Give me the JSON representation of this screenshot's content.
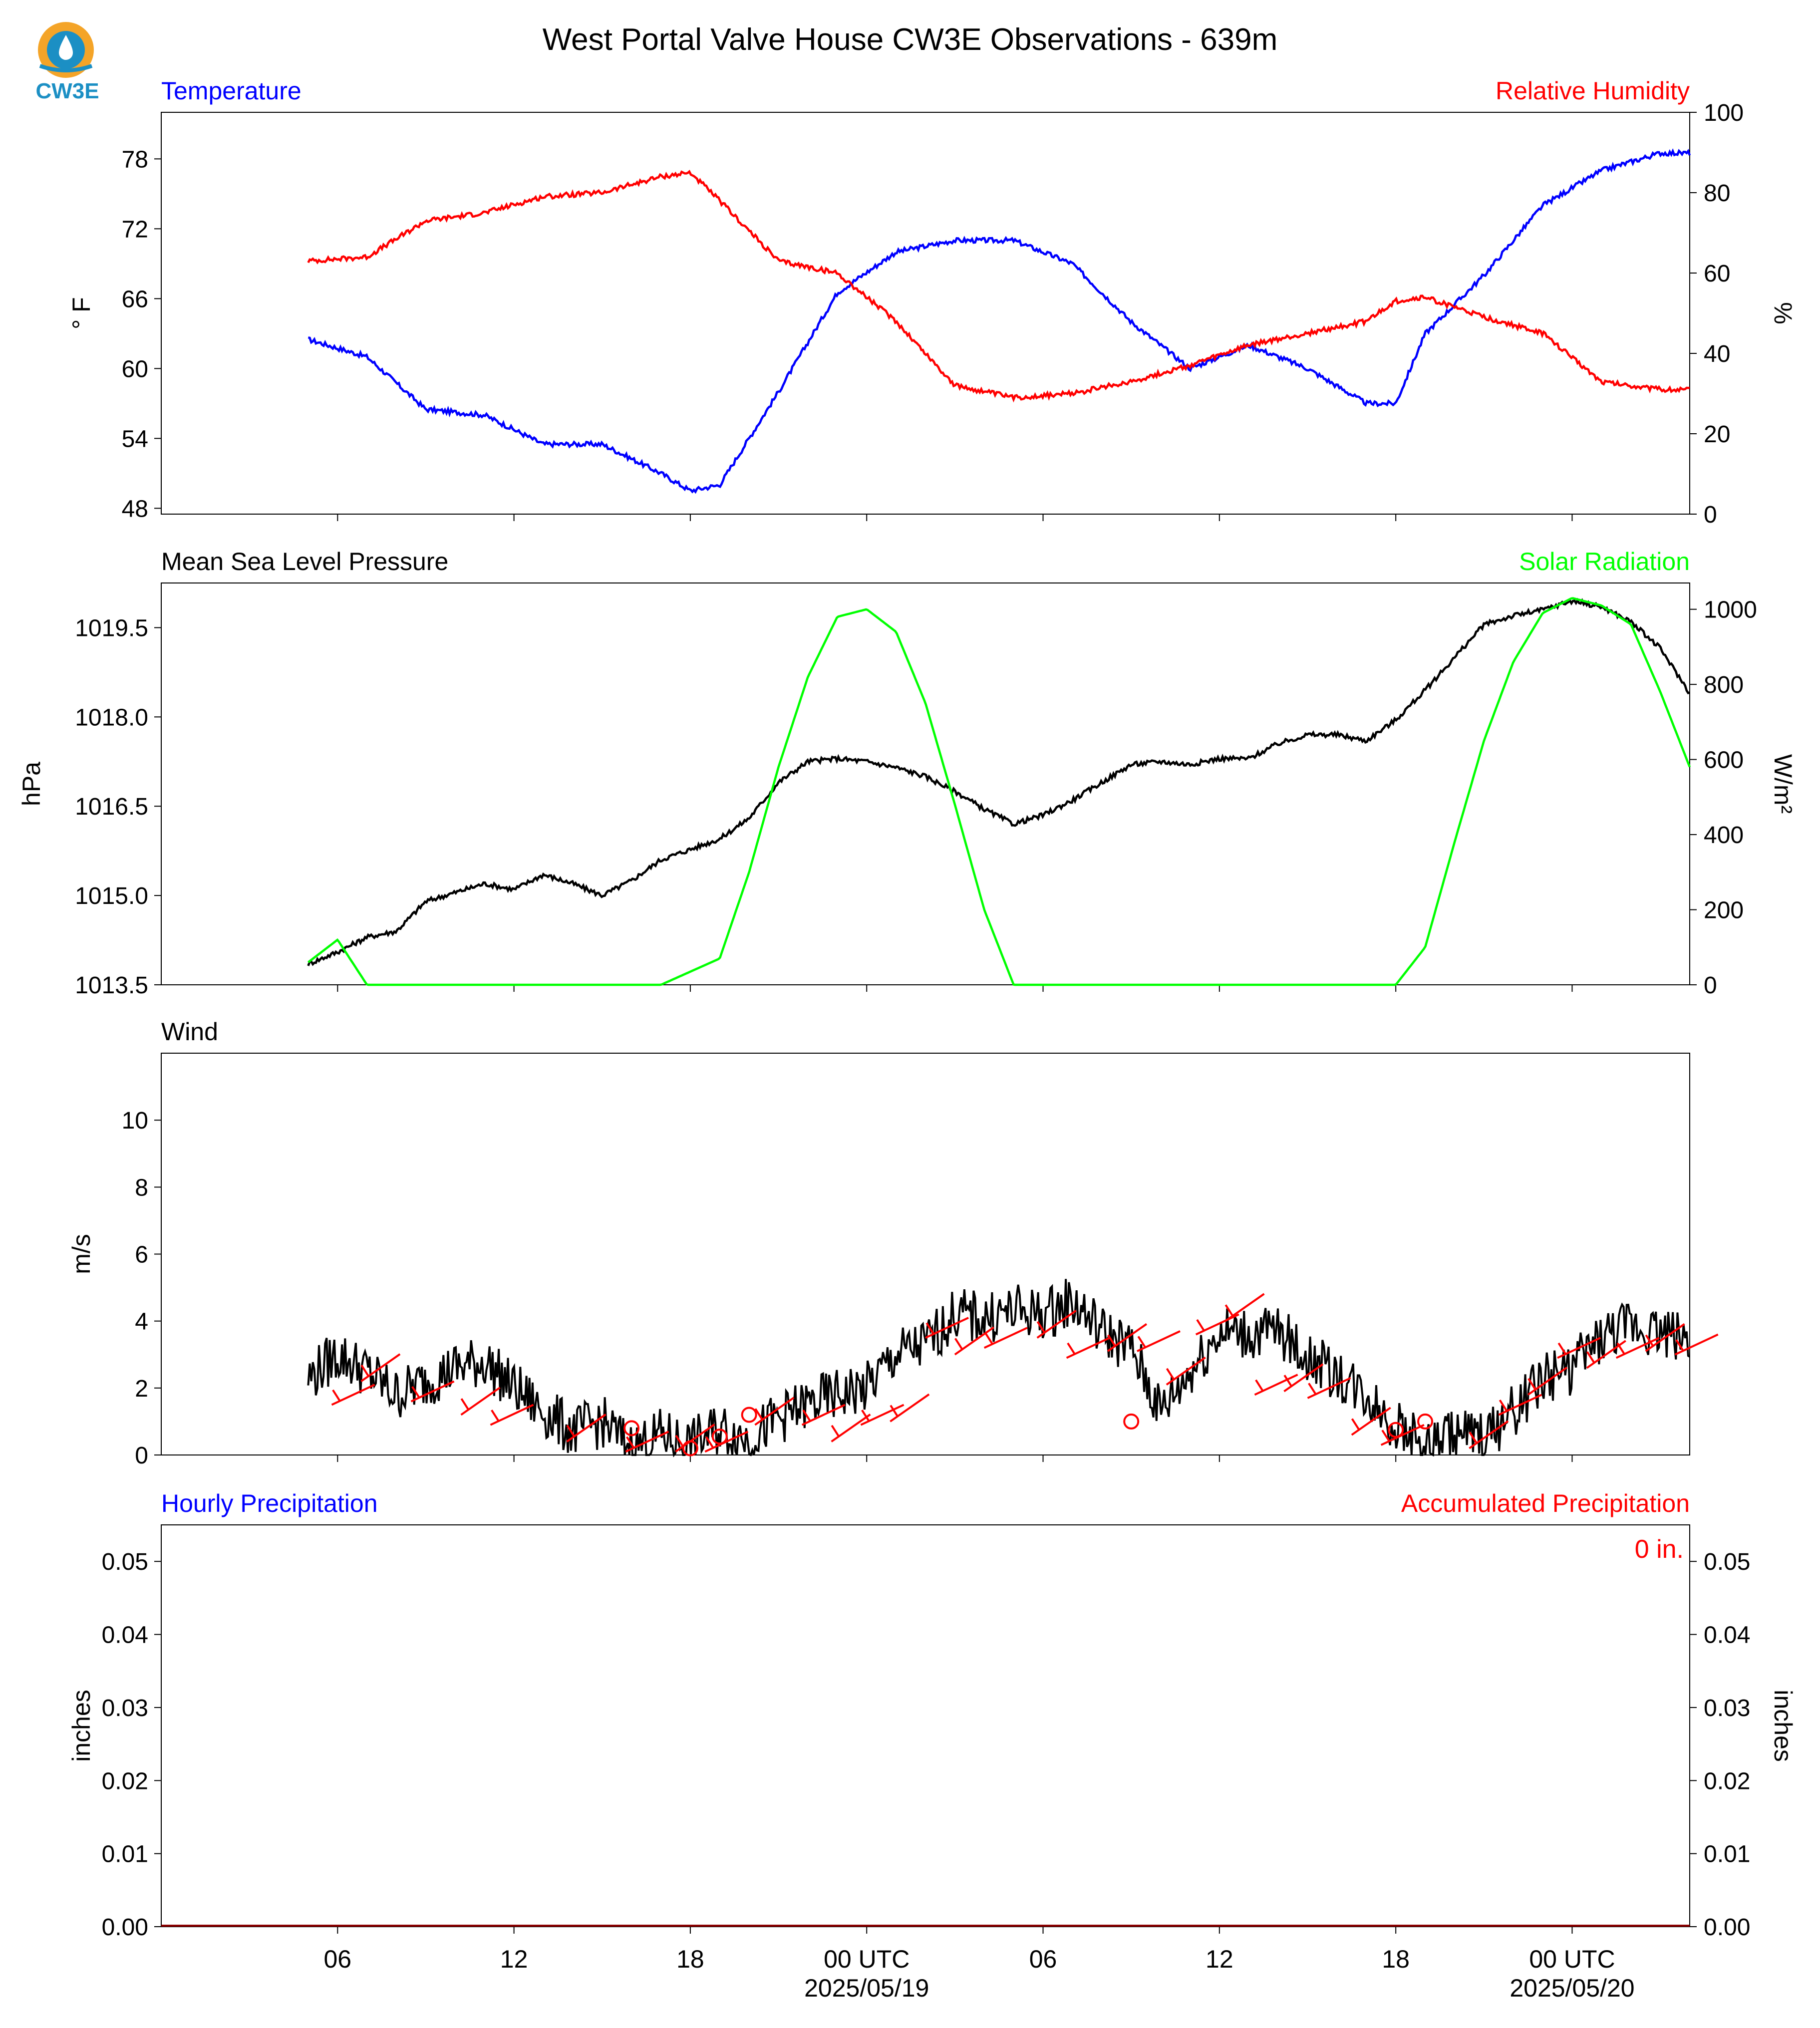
{
  "title": "West Portal Valve House CW3E Observations - 639m",
  "logo": {
    "text": "CW3E",
    "icon": "cw3e-water-drop-logo"
  },
  "colors": {
    "blue": "#0000ff",
    "red": "#ff0000",
    "green": "#00ff00",
    "black": "#000000"
  },
  "chart_data": [
    {
      "type": "line",
      "panel": "temperature-humidity",
      "left_title": "Temperature",
      "right_title": "Relative Humidity",
      "ylabel": "° F",
      "ylabel_right": "%",
      "ylim": [
        47.5,
        82
      ],
      "yticks": [
        48,
        54,
        60,
        66,
        72,
        78
      ],
      "ylim_right": [
        0,
        100
      ],
      "yticks_right": [
        0,
        20,
        40,
        60,
        80,
        100
      ],
      "x": [
        0,
        2,
        4,
        6,
        8,
        10,
        12,
        13,
        14,
        16,
        18,
        20,
        22,
        24,
        26,
        28,
        30,
        32,
        34,
        36,
        37,
        38,
        40,
        42,
        44,
        46,
        47
      ],
      "series": [
        {
          "name": "Temperature",
          "axis": "left",
          "color": "#0000ff",
          "values": [
            62.5,
            61,
            56.5,
            56,
            53.5,
            53.5,
            51,
            49.5,
            50,
            58,
            66.5,
            70,
            71,
            71,
            69,
            64,
            60,
            62,
            60,
            57,
            57,
            63,
            68,
            74,
            77,
            78.5,
            78.5
          ]
        },
        {
          "name": "Relative Humidity",
          "axis": "right",
          "color": "#ff0000",
          "values": [
            63,
            64,
            73,
            75,
            79,
            80,
            84,
            85,
            78,
            63,
            60,
            48,
            32,
            29,
            30,
            33,
            37,
            42,
            45,
            48,
            53,
            54,
            49,
            45,
            33,
            31,
            31
          ]
        }
      ]
    },
    {
      "type": "line",
      "panel": "pressure-solar",
      "left_title": "Mean Sea Level Pressure",
      "right_title": "Solar Radiation",
      "ylabel": "hPa",
      "ylabel_right": "W/m²",
      "ylim": [
        1013.5,
        1020.25
      ],
      "yticks": [
        1013.5,
        1015.0,
        1016.5,
        1018.0,
        1019.5
      ],
      "ylim_right": [
        0,
        1070
      ],
      "yticks_right": [
        0,
        200,
        400,
        600,
        800,
        1000
      ],
      "x": [
        0,
        1,
        2,
        3,
        4,
        6,
        7,
        8,
        9,
        10,
        11,
        12,
        14,
        15,
        16,
        17,
        18,
        19,
        20,
        21,
        22,
        23,
        24,
        25,
        26,
        27,
        28,
        29,
        30,
        31,
        32,
        33,
        34,
        35,
        36,
        37,
        38,
        39,
        40,
        41,
        42,
        43,
        44,
        45,
        46,
        47
      ],
      "series": [
        {
          "name": "Mean Sea Level Pressure",
          "axis": "left",
          "color": "#000000",
          "values": [
            1013.85,
            1014.05,
            1014.3,
            1014.4,
            1014.9,
            1015.2,
            1015.1,
            1015.35,
            1015.2,
            1015.0,
            1015.25,
            1015.6,
            1015.95,
            1016.3,
            1016.9,
            1017.25,
            1017.3,
            1017.25,
            1017.15,
            1017.0,
            1016.75,
            1016.45,
            1016.2,
            1016.35,
            1016.6,
            1016.9,
            1017.2,
            1017.25,
            1017.2,
            1017.3,
            1017.3,
            1017.55,
            1017.7,
            1017.7,
            1017.6,
            1017.95,
            1018.45,
            1019.0,
            1019.55,
            1019.7,
            1019.8,
            1019.95,
            1019.85,
            1019.6,
            1019.15,
            1018.4
          ]
        },
        {
          "name": "Solar Radiation",
          "axis": "right",
          "color": "#00ff00",
          "values": [
            60,
            120,
            0,
            0,
            0,
            0,
            0,
            0,
            0,
            0,
            0,
            0,
            70,
            300,
            580,
            820,
            980,
            1000,
            940,
            750,
            480,
            200,
            0,
            0,
            0,
            0,
            0,
            0,
            0,
            0,
            0,
            0,
            0,
            0,
            0,
            0,
            100,
            380,
            650,
            860,
            990,
            1030,
            1010,
            960,
            780,
            580
          ]
        }
      ]
    },
    {
      "type": "line",
      "panel": "wind",
      "left_title": "Wind",
      "ylabel": "m/s",
      "ylim": [
        0,
        12
      ],
      "yticks": [
        0,
        2,
        4,
        6,
        8,
        10
      ],
      "x": [
        0,
        1,
        2,
        3,
        4,
        5,
        6,
        7,
        8,
        9,
        10,
        11,
        12,
        13,
        14,
        15,
        16,
        17,
        18,
        19,
        20,
        21,
        22,
        23,
        24,
        25,
        26,
        27,
        28,
        29,
        30,
        31,
        32,
        33,
        34,
        35,
        36,
        37,
        38,
        39,
        40,
        41,
        42,
        43,
        44,
        45,
        46,
        47
      ],
      "series": [
        {
          "name": "Wind",
          "color": "#000000",
          "values": [
            2.3,
            3.0,
            2.5,
            1.8,
            2.2,
            2.6,
            2.8,
            2.0,
            1.3,
            0.7,
            1.0,
            0.2,
            0.6,
            0.3,
            0.8,
            0.5,
            1.1,
            1.5,
            1.8,
            2.0,
            3.0,
            3.3,
            4.2,
            4.1,
            4.3,
            4.2,
            4.6,
            3.7,
            3.2,
            1.3,
            2.5,
            3.7,
            3.6,
            3.7,
            2.9,
            2.4,
            1.8,
            0.9,
            0.2,
            0.7,
            0.5,
            1.3,
            2.3,
            2.6,
            3.5,
            3.9,
            3.7,
            3.5
          ]
        }
      ],
      "barbs": [
        {
          "x": 0.8,
          "y": 1.5
        },
        {
          "x": 1.8,
          "y": 2.2
        },
        {
          "x": 3.5,
          "y": 1.6
        },
        {
          "x": 5.2,
          "y": 1.2
        },
        {
          "x": 6.2,
          "y": 0.9
        },
        {
          "x": 8.8,
          "y": 0.4
        },
        {
          "x": 10.8,
          "y": 0.1
        },
        {
          "x": 12.5,
          "y": 0.1
        },
        {
          "x": 13.5,
          "y": 0.1
        },
        {
          "x": 15.2,
          "y": 0.9
        },
        {
          "x": 16.8,
          "y": 0.9
        },
        {
          "x": 17.8,
          "y": 0.4
        },
        {
          "x": 18.8,
          "y": 0.9
        },
        {
          "x": 19.8,
          "y": 1.0
        },
        {
          "x": 21.0,
          "y": 3.5
        },
        {
          "x": 22.0,
          "y": 3.0
        },
        {
          "x": 23.0,
          "y": 3.2
        },
        {
          "x": 24.8,
          "y": 3.5
        },
        {
          "x": 25.8,
          "y": 2.9
        },
        {
          "x": 27.2,
          "y": 3.1
        },
        {
          "x": 28.2,
          "y": 3.1
        },
        {
          "x": 29.2,
          "y": 2.1
        },
        {
          "x": 30.2,
          "y": 3.6
        },
        {
          "x": 31.2,
          "y": 4.0
        },
        {
          "x": 32.2,
          "y": 1.8
        },
        {
          "x": 33.2,
          "y": 1.9
        },
        {
          "x": 34.0,
          "y": 1.7
        },
        {
          "x": 35.5,
          "y": 0.6
        },
        {
          "x": 36.5,
          "y": 0.3
        },
        {
          "x": 39.5,
          "y": 0.2
        },
        {
          "x": 40.5,
          "y": 1.2
        },
        {
          "x": 41.5,
          "y": 1.8
        },
        {
          "x": 42.5,
          "y": 2.9
        },
        {
          "x": 43.5,
          "y": 2.6
        },
        {
          "x": 44.5,
          "y": 2.9
        },
        {
          "x": 45.5,
          "y": 3.1
        },
        {
          "x": 46.5,
          "y": 3.0
        }
      ],
      "calm_circles": [
        {
          "x": 11.0,
          "y": 0.8
        },
        {
          "x": 13.0,
          "y": 0.2
        },
        {
          "x": 14.0,
          "y": 0.55
        },
        {
          "x": 15.0,
          "y": 1.2
        },
        {
          "x": 28.0,
          "y": 1.0
        },
        {
          "x": 37.0,
          "y": 0.75
        },
        {
          "x": 38.0,
          "y": 1.0
        }
      ]
    },
    {
      "type": "line",
      "panel": "precipitation",
      "left_title": "Hourly Precipitation",
      "right_title": "Accumulated Precipitation",
      "ylabel": "inches",
      "ylabel_right": "inches",
      "ylim": [
        0,
        0.055
      ],
      "yticks": [
        "0.00",
        "0.01",
        "0.02",
        "0.03",
        "0.04",
        "0.05"
      ],
      "annotation": "0 in.",
      "series": [
        {
          "name": "Hourly Precipitation",
          "color": "#0000ff",
          "values": [
            0,
            0
          ]
        },
        {
          "name": "Accumulated Precipitation",
          "color": "#ff0000",
          "values": [
            0,
            0
          ]
        }
      ]
    }
  ],
  "x_axis": {
    "range_hours": [
      -5,
      47
    ],
    "ticks": [
      {
        "h": 1,
        "label": "06"
      },
      {
        "h": 7,
        "label": "12"
      },
      {
        "h": 13,
        "label": "18"
      },
      {
        "h": 19,
        "label": "00 UTC",
        "date": "2025/05/19"
      },
      {
        "h": 25,
        "label": "06"
      },
      {
        "h": 31,
        "label": "12"
      },
      {
        "h": 37,
        "label": "18"
      },
      {
        "h": 43,
        "label": "00 UTC",
        "date": "2025/05/20"
      }
    ]
  }
}
